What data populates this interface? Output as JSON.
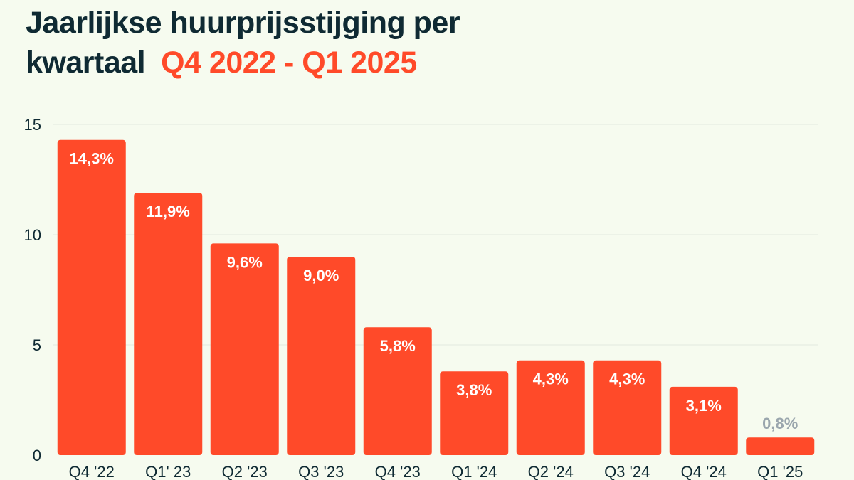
{
  "title_line1": "Jaarlijkse huurprijsstijging per",
  "title_line2": "kwartaal",
  "title_range": "Q4 2022 - Q1 2025",
  "colors": {
    "bar": "#ff4a29",
    "title": "#0f2a33",
    "accent": "#ff4a29",
    "grid": "#e3e8df",
    "small_label": "#9aa6ad"
  },
  "chart_data": {
    "type": "bar",
    "categories": [
      "Q4 '22",
      "Q1' 23",
      "Q2 '23",
      "Q3 '23",
      "Q4 '23",
      "Q1 '24",
      "Q2 '24",
      "Q3 '24",
      "Q4 '24",
      "Q1 '25"
    ],
    "values": [
      14.3,
      11.9,
      9.6,
      9.0,
      5.8,
      3.8,
      4.3,
      4.3,
      3.1,
      0.8
    ],
    "data_labels": [
      "14,3%",
      "11,9%",
      "9,6%",
      "9,0%",
      "5,8%",
      "3,8%",
      "4,3%",
      "4,3%",
      "3,1%",
      "0,8%"
    ],
    "yticks": [
      0,
      5,
      10,
      15
    ],
    "ylim": [
      0,
      15
    ],
    "grid": true,
    "legend": "none"
  }
}
